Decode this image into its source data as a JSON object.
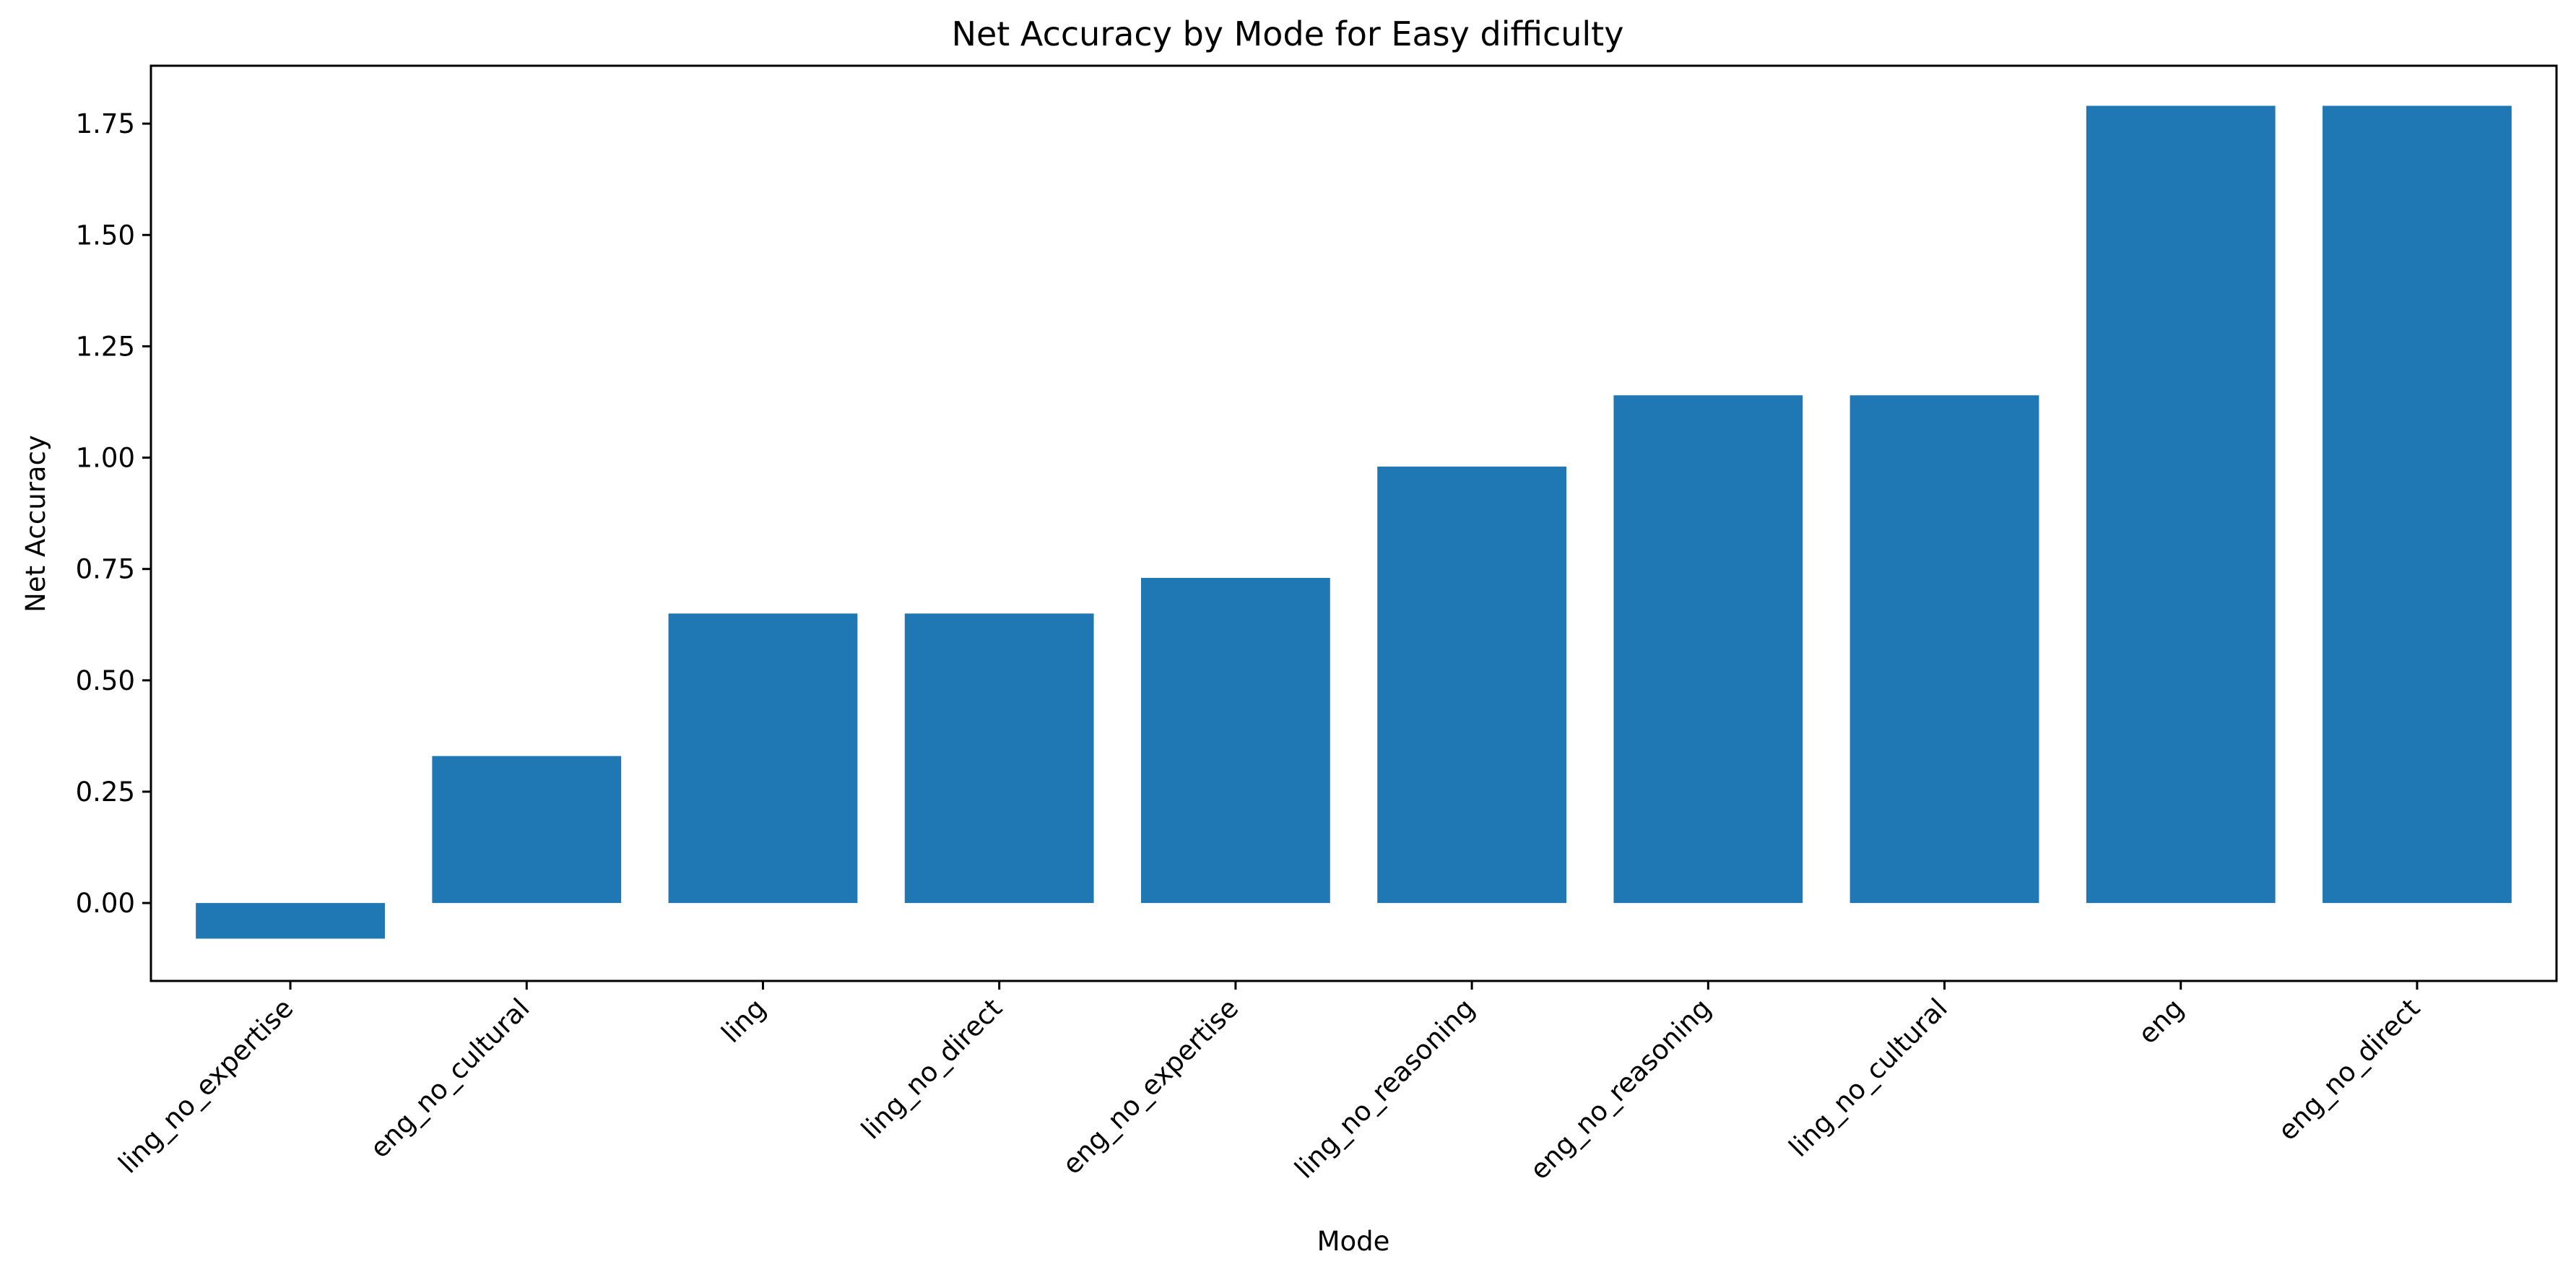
{
  "chart_data": {
    "type": "bar",
    "title": "Net Accuracy by Mode for Easy difficulty",
    "xlabel": "Mode",
    "ylabel": "Net Accuracy",
    "categories": [
      "ling_no_expertise",
      "eng_no_cultural",
      "ling",
      "ling_no_direct",
      "eng_no_expertise",
      "ling_no_reasoning",
      "eng_no_reasoning",
      "ling_no_cultural",
      "eng",
      "eng_no_direct"
    ],
    "values": [
      -0.08,
      0.33,
      0.65,
      0.65,
      0.73,
      0.98,
      1.14,
      1.14,
      1.79,
      1.79
    ],
    "ylim": [
      -0.175,
      1.88
    ],
    "yticks": [
      0.0,
      0.25,
      0.5,
      0.75,
      1.0,
      1.25,
      1.5,
      1.75
    ],
    "ytick_labels": [
      "0.00",
      "0.25",
      "0.50",
      "0.75",
      "1.00",
      "1.25",
      "1.50",
      "1.75"
    ],
    "grid": false,
    "legend": "none",
    "bar_color": "#1f77b4"
  }
}
